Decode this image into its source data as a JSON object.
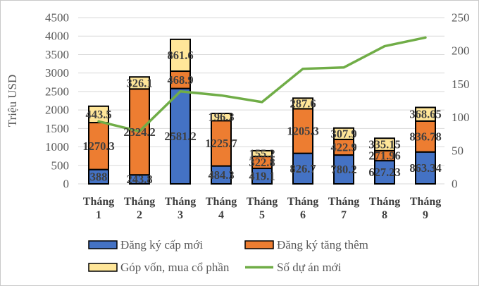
{
  "chart_title": "",
  "y_axis_left": {
    "title": "Triệu USD",
    "min": 0,
    "max": 4500,
    "step": 500,
    "tick_labels": [
      "0",
      "500",
      "1000",
      "1500",
      "2000",
      "2500",
      "3000",
      "3500",
      "4000",
      "4500"
    ]
  },
  "y_axis_right": {
    "min": 0,
    "max": 250,
    "step": 50,
    "tick_labels": [
      "0",
      "50",
      "100",
      "150",
      "200",
      "250"
    ]
  },
  "chart_data": {
    "type": "combo-stacked-bar-line",
    "grid": true,
    "legend_position": "bottom",
    "categories": [
      "Tháng 1",
      "Tháng 2",
      "Tháng 3",
      "Tháng 4",
      "Tháng 5",
      "Tháng 6",
      "Tháng 7",
      "Tháng 8",
      "Tháng 9"
    ],
    "series": [
      {
        "name": "Đăng ký cấp mới",
        "type": "bar",
        "axis": "left",
        "color": "#4472c4",
        "values": [
          388,
          243.8,
          2581.2,
          484.3,
          419.1,
          826.7,
          780.2,
          627.23,
          863.34
        ]
      },
      {
        "name": "Đăng ký tăng thêm",
        "type": "bar",
        "axis": "left",
        "color": "#ed7d31",
        "values": [
          1270.3,
          2324.2,
          468.9,
          1225.7,
          322.8,
          1205.3,
          422.9,
          271.96,
          836.78
        ]
      },
      {
        "name": "Góp vốn, mua cổ phần",
        "type": "bar",
        "axis": "left",
        "color": "#ffe699",
        "values": [
          443.5,
          326.1,
          861.6,
          196.3,
          155.2,
          287.6,
          307.9,
          335.15,
          368.65
        ]
      },
      {
        "name": "Số dự án mới",
        "type": "line",
        "axis": "right",
        "color": "#70ad47",
        "values": [
          94,
          79,
          139,
          133,
          123,
          173,
          175,
          207,
          220
        ]
      }
    ]
  },
  "colors": {
    "grid": "#d9d9d9",
    "axis_text": "#595959",
    "data_label": "#404040",
    "category_text": "#404040",
    "legend_text": "#595959",
    "bar_border": "#000000",
    "background": "#ffffff",
    "frame_border": "#c9c9c9"
  }
}
